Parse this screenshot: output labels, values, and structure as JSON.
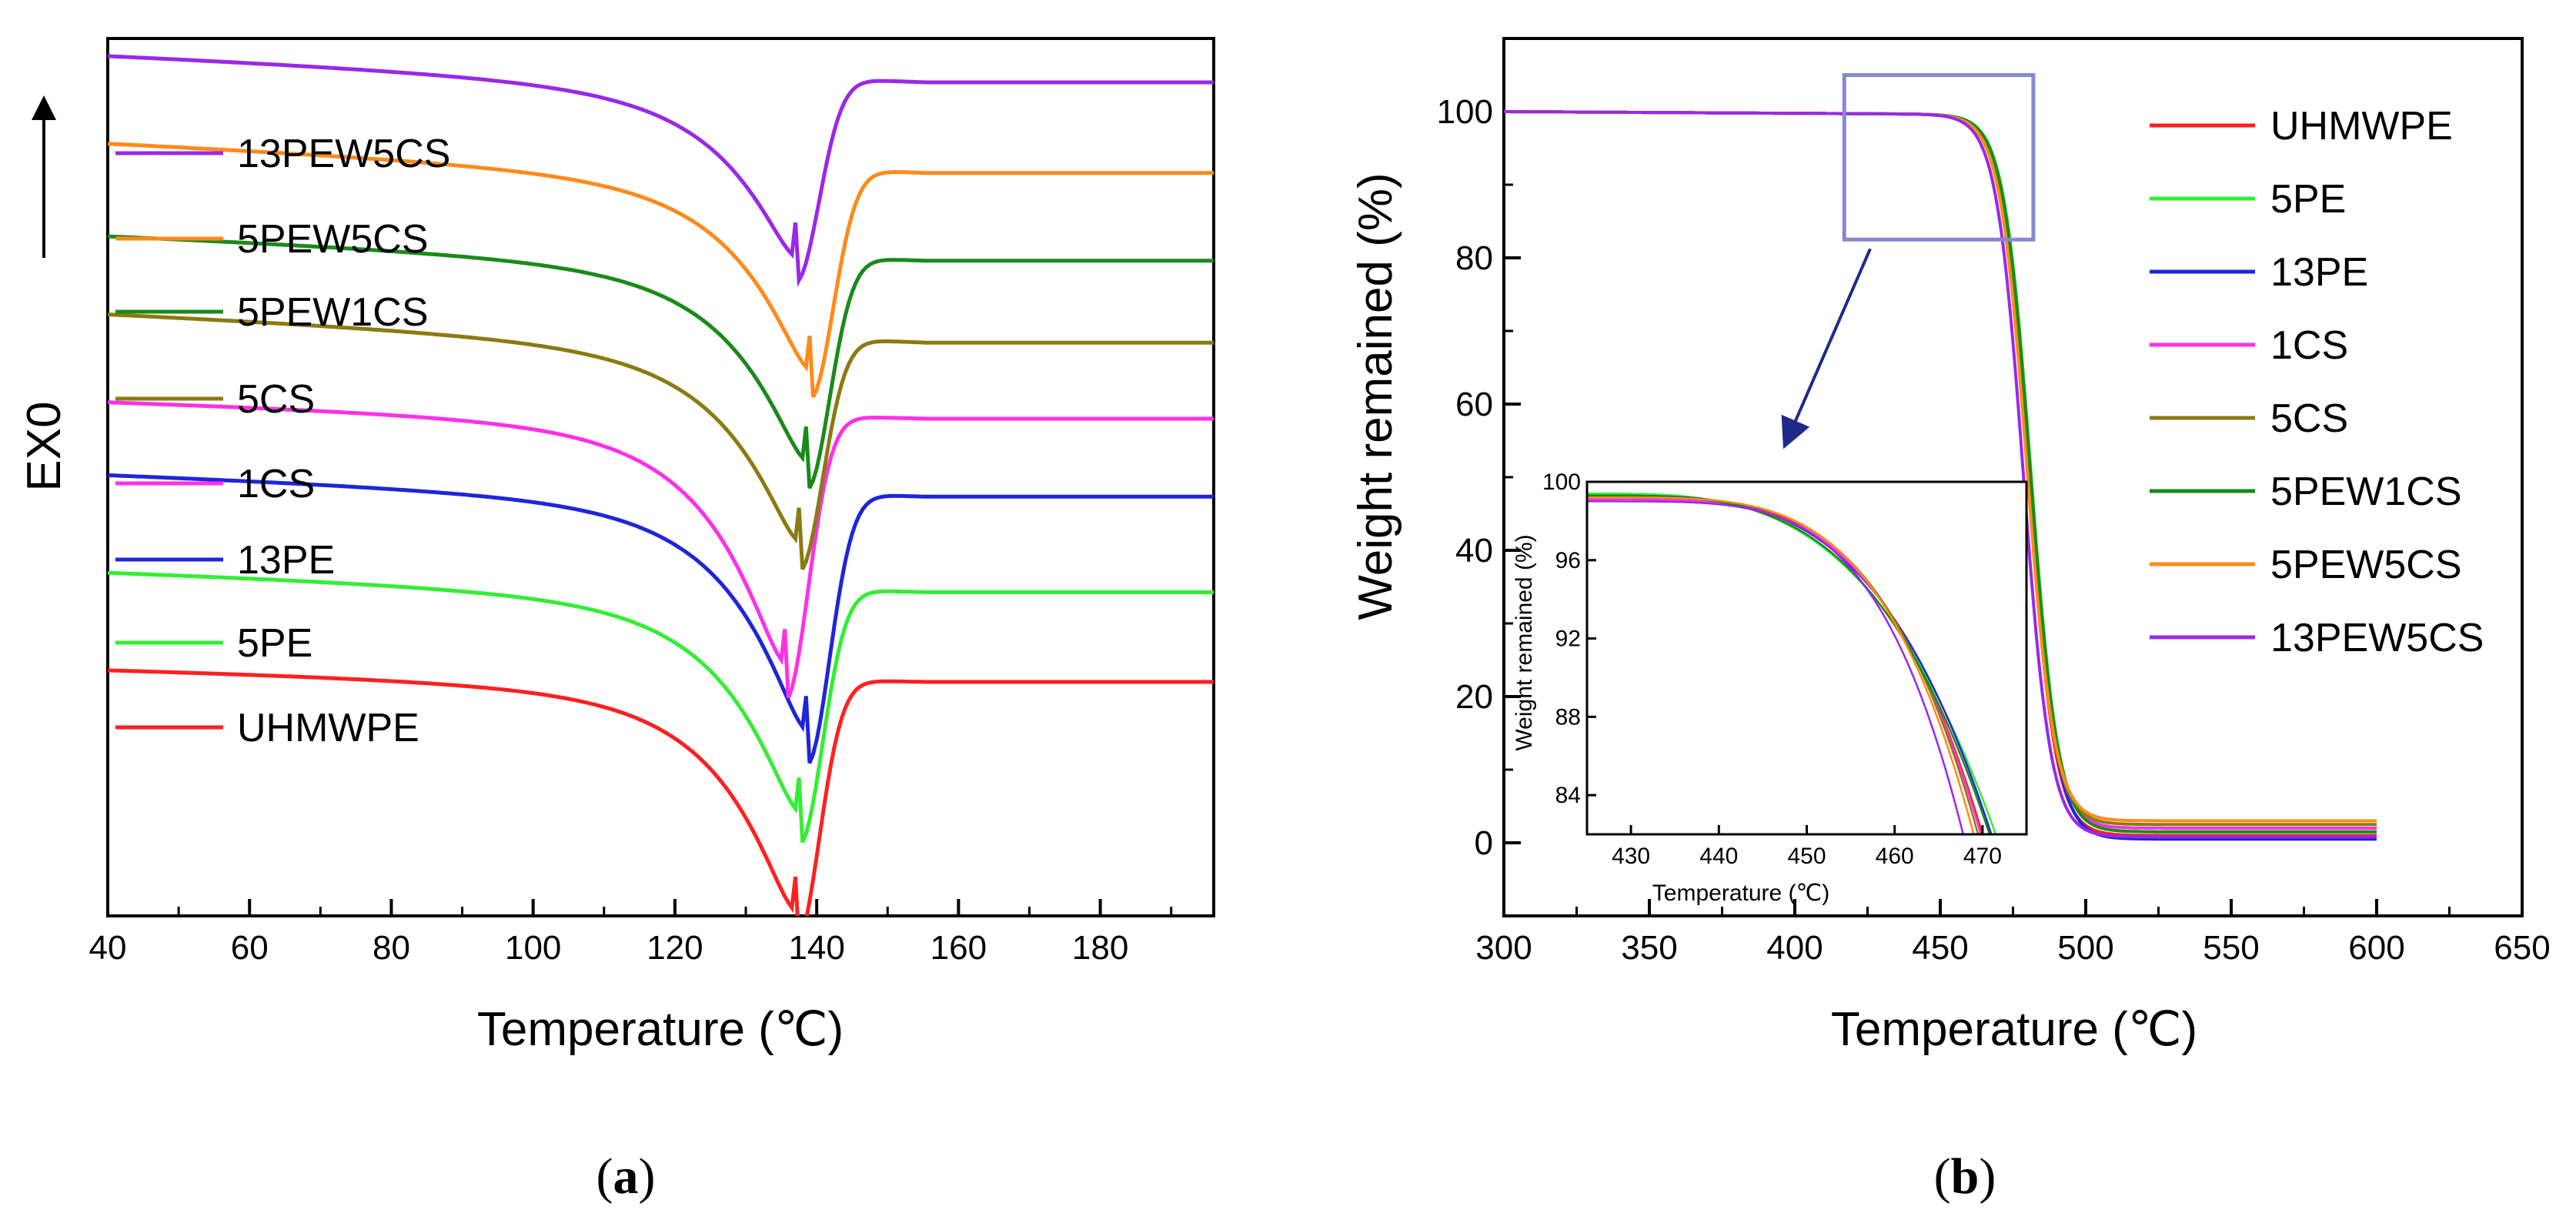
{
  "figure": {
    "panel_a_label": "a",
    "panel_b_label": "b"
  },
  "chart_data": [
    {
      "type": "line",
      "panel": "a",
      "title": "",
      "xlabel": "Temperature (℃)",
      "ylabel": "EX0",
      "xlim": [
        40,
        196
      ],
      "ylim": [
        0,
        9
      ],
      "xticks": [
        "40",
        "60",
        "80",
        "100",
        "120",
        "140",
        "160",
        "180"
      ],
      "yticks_visible": false,
      "exo_arrow": "up",
      "legend_position": "top-left",
      "series": [
        {
          "name": "UHMWPE",
          "color": "#ff2020",
          "baseline_left": 2.55,
          "baseline_right": 2.4,
          "peak_temp": 137.0,
          "peak_depth": 2.38
        },
        {
          "name": "5PE",
          "color": "#33ee33",
          "baseline_left": 3.55,
          "baseline_right": 3.32,
          "peak_temp": 137.5,
          "peak_depth": 2.28
        },
        {
          "name": "13PE",
          "color": "#1f25d9",
          "baseline_left": 4.55,
          "baseline_right": 4.3,
          "peak_temp": 138.5,
          "peak_depth": 2.45
        },
        {
          "name": "1CS",
          "color": "#ff30e8",
          "baseline_left": 5.3,
          "baseline_right": 5.1,
          "peak_temp": 135.5,
          "peak_depth": 2.58
        },
        {
          "name": "5CS",
          "color": "#8a7a10",
          "baseline_left": 6.2,
          "baseline_right": 5.88,
          "peak_temp": 137.5,
          "peak_depth": 2.05
        },
        {
          "name": "5PEW1CS",
          "color": "#1a8a1a",
          "baseline_left": 7.0,
          "baseline_right": 6.72,
          "peak_temp": 138.5,
          "peak_depth": 2.05
        },
        {
          "name": "5PEW5CS",
          "color": "#ff8a1a",
          "baseline_left": 7.95,
          "baseline_right": 7.62,
          "peak_temp": 139.0,
          "peak_depth": 2.02
        },
        {
          "name": "13PEW5CS",
          "color": "#9a28e8",
          "baseline_left": 8.85,
          "baseline_right": 8.55,
          "peak_temp": 137.0,
          "peak_depth": 1.75
        }
      ]
    },
    {
      "type": "line",
      "panel": "b",
      "title": "",
      "xlabel": "Temperature (℃)",
      "ylabel": "Weight remained (%)",
      "xlim": [
        300,
        650
      ],
      "ylim": [
        -10,
        110
      ],
      "xticks": [
        "300",
        "350",
        "400",
        "450",
        "500",
        "550",
        "600",
        "650"
      ],
      "yticks": [
        "0",
        "20",
        "40",
        "60",
        "80",
        "100"
      ],
      "legend_position": "top-right",
      "zoom_box": {
        "x_range": [
          417,
          482
        ],
        "y_range": [
          82.5,
          105
        ]
      },
      "series": [
        {
          "name": "UHMWPE",
          "color": "#ff2020",
          "onset": 466,
          "residue": 1.0,
          "midpoint": 480.2
        },
        {
          "name": "5PE",
          "color": "#33ee33",
          "onset": 470,
          "residue": 1.5,
          "midpoint": 481.2
        },
        {
          "name": "13PE",
          "color": "#1f25d9",
          "onset": 468,
          "residue": 0.5,
          "midpoint": 480.8
        },
        {
          "name": "1CS",
          "color": "#ff30e8",
          "onset": 466,
          "residue": 2.0,
          "midpoint": 480.3
        },
        {
          "name": "5CS",
          "color": "#8a7a10",
          "onset": 466,
          "residue": 2.5,
          "midpoint": 480.0
        },
        {
          "name": "5PEW1CS",
          "color": "#1a8a1a",
          "onset": 469,
          "residue": 1.5,
          "midpoint": 481.0
        },
        {
          "name": "5PEW5CS",
          "color": "#ff8a1a",
          "onset": 465,
          "residue": 3.0,
          "midpoint": 479.8
        },
        {
          "name": "13PEW5CS",
          "color": "#9a28e8",
          "onset": 462,
          "residue": 0.8,
          "midpoint": 478.6
        }
      ],
      "inset": {
        "xlabel": "Temperature (℃)",
        "ylabel": "Weight remained (%)",
        "xlim": [
          425,
          475
        ],
        "ylim": [
          82,
          100
        ],
        "xticks": [
          "430",
          "440",
          "450",
          "460",
          "470"
        ],
        "yticks": [
          "84",
          "88",
          "92",
          "96",
          "100"
        ],
        "curves": [
          {
            "name": "UHMWPE",
            "color": "#ff2020",
            "start": 99.2,
            "end_temp": 470.0,
            "shape": 1.9
          },
          {
            "name": "5PE",
            "color": "#33ee33",
            "start": 99.4,
            "end_temp": 471.5,
            "shape": 1.6
          },
          {
            "name": "13PE",
            "color": "#1f25d9",
            "start": 99.3,
            "end_temp": 471.0,
            "shape": 1.75
          },
          {
            "name": "1CS",
            "color": "#ff30e8",
            "start": 99.1,
            "end_temp": 469.8,
            "shape": 1.95
          },
          {
            "name": "5CS",
            "color": "#8a7a10",
            "start": 99.2,
            "end_temp": 469.5,
            "shape": 2.0
          },
          {
            "name": "5PEW1CS",
            "color": "#1a8a1a",
            "start": 99.3,
            "end_temp": 470.8,
            "shape": 1.7
          },
          {
            "name": "5PEW5CS",
            "color": "#ff8a1a",
            "start": 99.2,
            "end_temp": 469.0,
            "shape": 2.05
          },
          {
            "name": "13PEW5CS",
            "color": "#9a28e8",
            "start": 99.0,
            "end_temp": 467.8,
            "shape": 2.15
          }
        ]
      }
    }
  ]
}
